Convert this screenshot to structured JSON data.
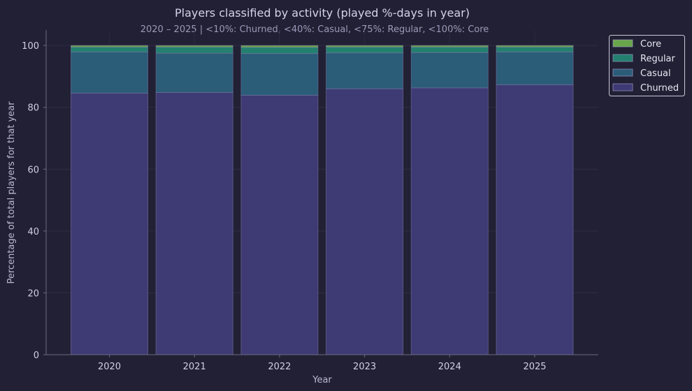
{
  "chart_data": {
    "type": "bar",
    "stacked": true,
    "title": "Players classified by activity (played %-days in year)",
    "subtitle": "2020 – 2025 | <10%: Churned, <40%: Casual, <75%: Regular, <100%: Core",
    "xlabel": "Year",
    "ylabel": "Percentage of total players for that year",
    "ylim": [
      0,
      105
    ],
    "yticks": [
      0,
      20,
      40,
      60,
      80,
      100
    ],
    "grid": true,
    "legend_position": "top-right",
    "categories": [
      "2020",
      "2021",
      "2022",
      "2023",
      "2024",
      "2025"
    ],
    "series": [
      {
        "name": "Churned",
        "color": "#3d3a74",
        "values": [
          84.6,
          84.8,
          83.9,
          86.0,
          86.3,
          87.3
        ]
      },
      {
        "name": "Casual",
        "color": "#2b5c78",
        "values": [
          13.3,
          12.7,
          13.5,
          11.6,
          11.4,
          10.6
        ]
      },
      {
        "name": "Regular",
        "color": "#23806f",
        "values": [
          1.6,
          2.0,
          2.0,
          1.9,
          1.8,
          1.6
        ]
      },
      {
        "name": "Core",
        "color": "#69a64a",
        "values": [
          0.5,
          0.5,
          0.6,
          0.5,
          0.5,
          0.5
        ]
      }
    ],
    "legend_order": [
      "Core",
      "Regular",
      "Casual",
      "Churned"
    ]
  }
}
